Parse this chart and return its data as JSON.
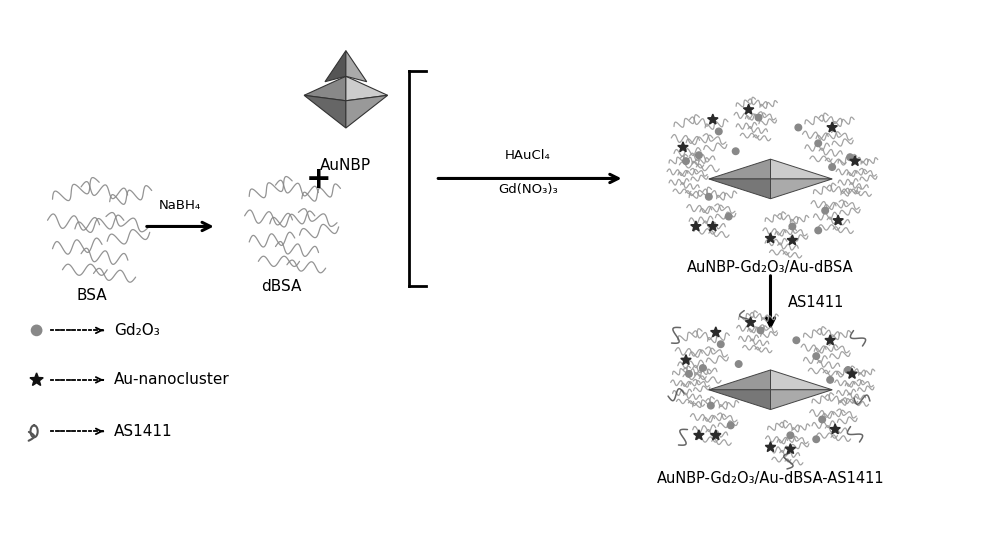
{
  "bg_color": "#ffffff",
  "text_color": "#000000",
  "bsa_label": "BSA",
  "nabh4_label": "NaBH₄",
  "dbsa_label": "dBSA",
  "aunbp_label": "AuNBP",
  "haucl4_label": "HAuCl₄",
  "gdno3_label": "Gd(NO₃)₃",
  "product1_label": "AuNBP-Gd₂O₃/Au-dBSA",
  "as1411_label1": "AS1411",
  "product2_label": "AuNBP-Gd₂O₃/Au-dBSA-AS1411",
  "legend_gd2o3": "Gd₂O₃",
  "legend_au": "Au-nanocluster",
  "legend_as": "AS1411",
  "figsize": [
    10.0,
    5.41
  ],
  "dpi": 100
}
